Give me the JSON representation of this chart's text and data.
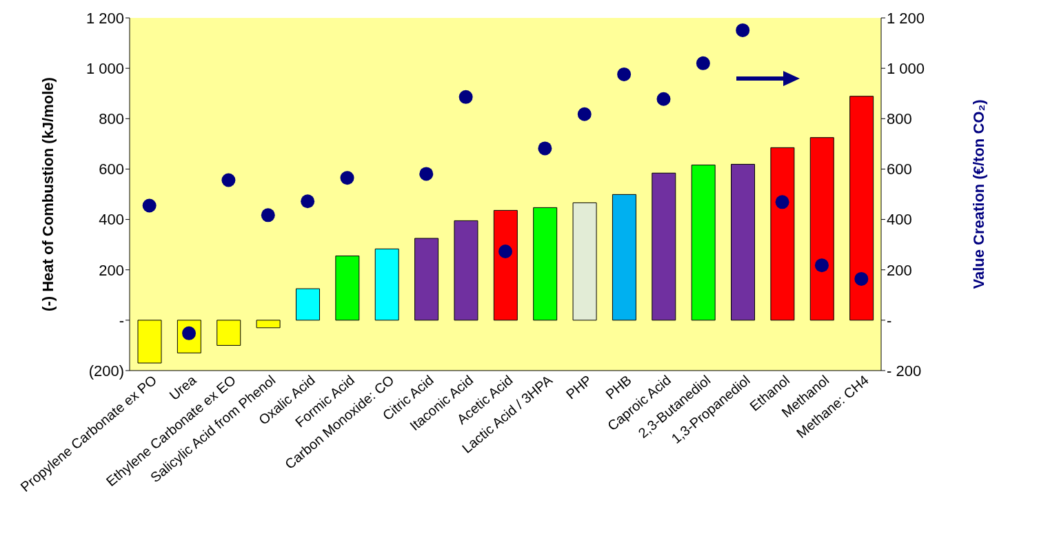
{
  "chart_data": {
    "type": "bar",
    "categories": [
      "Propylene Carbonate ex PO",
      "Urea",
      "Ethylene Carbonate ex EO",
      "Salicylic Acid from Phenol",
      "Oxalic Acid",
      "Formic Acid",
      "Carbon Monoxide: CO",
      "Citric Acid",
      "Itaconic Acid",
      "Acetic Acid",
      "Lactic Acid / 3HPA",
      "PHP",
      "PHB",
      "Caproic Acid",
      "2,3-Butanediol",
      "1,3-Propanediol",
      "Ethanol",
      "Methanol",
      "Methane: CH4"
    ],
    "series": [
      {
        "colors": [
          "#ffff00",
          "#ffff00",
          "#ffff00",
          "#ffff00",
          "#00ffff",
          "#00ff00",
          "#00ffff",
          "#7030a0",
          "#7030a0",
          "#ff0000",
          "#00ff00",
          "#e2ecd6",
          "#00b0f0",
          "#7030a0",
          "#00ff00",
          "#7030a0",
          "#ff0000",
          "#ff0000",
          "#ff0000"
        ],
        "values": [
          -170,
          -130,
          -100,
          -30,
          125,
          255,
          283,
          325,
          395,
          436,
          447,
          466,
          499,
          584,
          616,
          619,
          685,
          725,
          889
        ]
      },
      {
        "type": "scatter",
        "axis": "y2",
        "color": "#000080",
        "values": [
          455,
          -52,
          556,
          417,
          472,
          565,
          null,
          581,
          886,
          273,
          682,
          818,
          976,
          878,
          1020,
          1151,
          469,
          218,
          164
        ]
      }
    ],
    "ylabel": "(-) Heat of Combustion (kJ/mole)",
    "y2label": "Value Creation (€/ton CO₂)",
    "ylim": [
      -200,
      1200
    ],
    "yticks": [
      {
        "value": -200,
        "label": "(200)"
      },
      {
        "value": 0,
        "label": "-"
      },
      200,
      400,
      600,
      800,
      {
        "value": 1000,
        "label": "1 000"
      },
      {
        "value": 1200,
        "label": "1 200"
      }
    ],
    "y2lim": [
      -200,
      1200
    ],
    "y2ticks": [
      {
        "value": -200,
        "label": "- 200"
      },
      {
        "value": 0,
        "label": "-"
      },
      200,
      400,
      600,
      800,
      {
        "value": 1000,
        "label": "1 000"
      },
      {
        "value": 1200,
        "label": "1 200"
      }
    ],
    "marker": "circle",
    "grid": false
  }
}
